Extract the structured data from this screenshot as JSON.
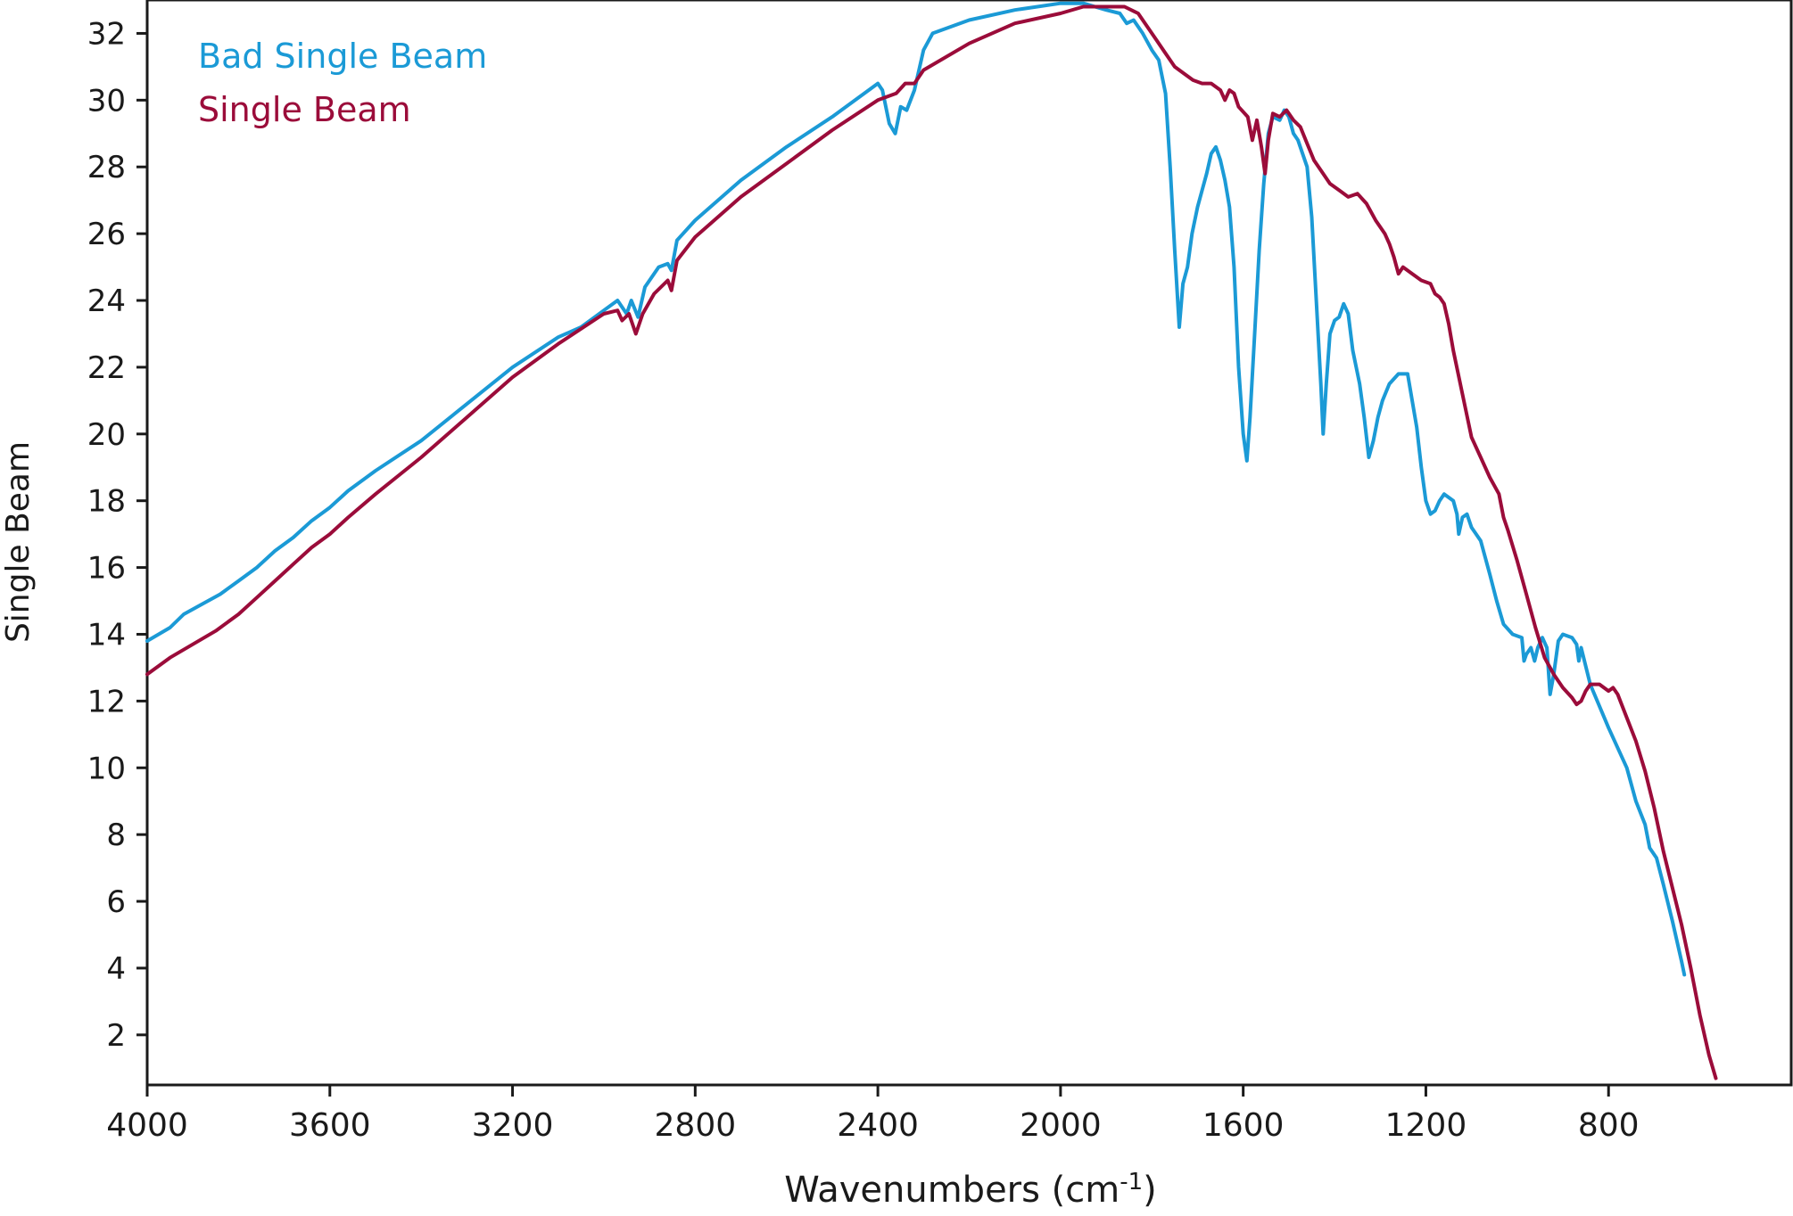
{
  "chart_data": {
    "type": "line",
    "title": "",
    "xlabel_main": "Wavenumbers (cm",
    "xlabel_sup": "-1",
    "xlabel_close": ")",
    "ylabel": "Single Beam",
    "xlim": [
      4000,
      400
    ],
    "ylim": [
      0.5,
      33
    ],
    "x_reversed": true,
    "grid": false,
    "legend_position": "top-left",
    "x_ticks": [
      4000,
      3600,
      3200,
      2800,
      2400,
      2000,
      1600,
      1200,
      800
    ],
    "x_tick_labels": [
      "4000",
      "3600",
      "3200",
      "2800",
      "2400",
      "2000",
      "1600",
      "1200",
      "800"
    ],
    "y_ticks": [
      2,
      4,
      6,
      8,
      10,
      12,
      14,
      16,
      18,
      20,
      22,
      24,
      26,
      28,
      30,
      32
    ],
    "y_tick_labels": [
      "2",
      "4",
      "6",
      "8",
      "10",
      "12",
      "14",
      "16",
      "18",
      "20",
      "22",
      "24",
      "26",
      "28",
      "30",
      "32"
    ],
    "series": [
      {
        "name": "Bad Single Beam",
        "color": "#1b9ad6",
        "points": [
          [
            4000,
            13.8
          ],
          [
            3950,
            14.2
          ],
          [
            3920,
            14.6
          ],
          [
            3880,
            14.9
          ],
          [
            3840,
            15.2
          ],
          [
            3800,
            15.6
          ],
          [
            3760,
            16.0
          ],
          [
            3720,
            16.5
          ],
          [
            3680,
            16.9
          ],
          [
            3640,
            17.4
          ],
          [
            3600,
            17.8
          ],
          [
            3560,
            18.3
          ],
          [
            3500,
            18.9
          ],
          [
            3400,
            19.8
          ],
          [
            3300,
            20.9
          ],
          [
            3200,
            22.0
          ],
          [
            3100,
            22.9
          ],
          [
            3050,
            23.2
          ],
          [
            3000,
            23.7
          ],
          [
            2970,
            24.0
          ],
          [
            2950,
            23.6
          ],
          [
            2940,
            24.0
          ],
          [
            2925,
            23.5
          ],
          [
            2910,
            24.4
          ],
          [
            2880,
            25.0
          ],
          [
            2860,
            25.1
          ],
          [
            2852,
            24.9
          ],
          [
            2840,
            25.8
          ],
          [
            2800,
            26.4
          ],
          [
            2700,
            27.6
          ],
          [
            2600,
            28.6
          ],
          [
            2500,
            29.5
          ],
          [
            2400,
            30.5
          ],
          [
            2390,
            30.3
          ],
          [
            2375,
            29.3
          ],
          [
            2362,
            29.0
          ],
          [
            2350,
            29.8
          ],
          [
            2337,
            29.7
          ],
          [
            2320,
            30.3
          ],
          [
            2300,
            31.5
          ],
          [
            2280,
            32.0
          ],
          [
            2200,
            32.4
          ],
          [
            2100,
            32.7
          ],
          [
            2000,
            32.9
          ],
          [
            1950,
            32.9
          ],
          [
            1900,
            32.7
          ],
          [
            1870,
            32.6
          ],
          [
            1855,
            32.3
          ],
          [
            1840,
            32.4
          ],
          [
            1820,
            32.0
          ],
          [
            1800,
            31.5
          ],
          [
            1785,
            31.2
          ],
          [
            1770,
            30.2
          ],
          [
            1760,
            28.0
          ],
          [
            1750,
            25.5
          ],
          [
            1740,
            23.2
          ],
          [
            1732,
            24.5
          ],
          [
            1722,
            25.0
          ],
          [
            1712,
            26.0
          ],
          [
            1700,
            26.8
          ],
          [
            1690,
            27.3
          ],
          [
            1680,
            27.8
          ],
          [
            1670,
            28.4
          ],
          [
            1660,
            28.6
          ],
          [
            1650,
            28.2
          ],
          [
            1640,
            27.6
          ],
          [
            1630,
            26.8
          ],
          [
            1620,
            25.0
          ],
          [
            1610,
            22.0
          ],
          [
            1600,
            20.0
          ],
          [
            1592,
            19.2
          ],
          [
            1585,
            20.5
          ],
          [
            1575,
            23.0
          ],
          [
            1565,
            25.5
          ],
          [
            1555,
            27.5
          ],
          [
            1545,
            29.0
          ],
          [
            1535,
            29.5
          ],
          [
            1520,
            29.4
          ],
          [
            1510,
            29.7
          ],
          [
            1500,
            29.5
          ],
          [
            1490,
            29.0
          ],
          [
            1480,
            28.8
          ],
          [
            1470,
            28.4
          ],
          [
            1460,
            28.0
          ],
          [
            1450,
            26.5
          ],
          [
            1440,
            24.0
          ],
          [
            1430,
            21.5
          ],
          [
            1425,
            20.0
          ],
          [
            1418,
            21.5
          ],
          [
            1410,
            23.0
          ],
          [
            1400,
            23.4
          ],
          [
            1390,
            23.5
          ],
          [
            1380,
            23.9
          ],
          [
            1370,
            23.6
          ],
          [
            1360,
            22.5
          ],
          [
            1345,
            21.5
          ],
          [
            1335,
            20.5
          ],
          [
            1325,
            19.3
          ],
          [
            1315,
            19.8
          ],
          [
            1305,
            20.5
          ],
          [
            1295,
            21.0
          ],
          [
            1280,
            21.5
          ],
          [
            1260,
            21.8
          ],
          [
            1240,
            21.8
          ],
          [
            1230,
            21.0
          ],
          [
            1220,
            20.2
          ],
          [
            1210,
            19.0
          ],
          [
            1200,
            18.0
          ],
          [
            1190,
            17.6
          ],
          [
            1180,
            17.7
          ],
          [
            1170,
            18.0
          ],
          [
            1160,
            18.2
          ],
          [
            1140,
            18.0
          ],
          [
            1132,
            17.6
          ],
          [
            1128,
            17.0
          ],
          [
            1120,
            17.5
          ],
          [
            1110,
            17.6
          ],
          [
            1100,
            17.2
          ],
          [
            1080,
            16.8
          ],
          [
            1060,
            15.8
          ],
          [
            1045,
            15.0
          ],
          [
            1030,
            14.3
          ],
          [
            1010,
            14.0
          ],
          [
            990,
            13.9
          ],
          [
            985,
            13.2
          ],
          [
            980,
            13.4
          ],
          [
            970,
            13.6
          ],
          [
            962,
            13.2
          ],
          [
            955,
            13.6
          ],
          [
            945,
            13.9
          ],
          [
            935,
            13.6
          ],
          [
            928,
            12.2
          ],
          [
            920,
            12.8
          ],
          [
            910,
            13.8
          ],
          [
            900,
            14.0
          ],
          [
            880,
            13.9
          ],
          [
            870,
            13.7
          ],
          [
            865,
            13.2
          ],
          [
            860,
            13.6
          ],
          [
            840,
            12.5
          ],
          [
            800,
            11.2
          ],
          [
            760,
            10.0
          ],
          [
            740,
            9.0
          ],
          [
            720,
            8.3
          ],
          [
            710,
            7.6
          ],
          [
            695,
            7.3
          ],
          [
            680,
            6.5
          ],
          [
            660,
            5.4
          ],
          [
            640,
            4.2
          ],
          [
            634,
            3.8
          ]
        ]
      },
      {
        "name": "Single Beam",
        "color": "#9b0c3a",
        "points": [
          [
            4000,
            12.8
          ],
          [
            3950,
            13.3
          ],
          [
            3900,
            13.7
          ],
          [
            3850,
            14.1
          ],
          [
            3800,
            14.6
          ],
          [
            3760,
            15.1
          ],
          [
            3720,
            15.6
          ],
          [
            3680,
            16.1
          ],
          [
            3640,
            16.6
          ],
          [
            3600,
            17.0
          ],
          [
            3560,
            17.5
          ],
          [
            3500,
            18.2
          ],
          [
            3400,
            19.3
          ],
          [
            3300,
            20.5
          ],
          [
            3200,
            21.7
          ],
          [
            3100,
            22.7
          ],
          [
            3000,
            23.6
          ],
          [
            2970,
            23.7
          ],
          [
            2960,
            23.4
          ],
          [
            2945,
            23.6
          ],
          [
            2930,
            23.0
          ],
          [
            2915,
            23.6
          ],
          [
            2890,
            24.2
          ],
          [
            2860,
            24.6
          ],
          [
            2852,
            24.3
          ],
          [
            2840,
            25.2
          ],
          [
            2800,
            25.9
          ],
          [
            2700,
            27.1
          ],
          [
            2600,
            28.1
          ],
          [
            2500,
            29.1
          ],
          [
            2400,
            30.0
          ],
          [
            2360,
            30.2
          ],
          [
            2340,
            30.5
          ],
          [
            2320,
            30.5
          ],
          [
            2300,
            30.9
          ],
          [
            2200,
            31.7
          ],
          [
            2100,
            32.3
          ],
          [
            2000,
            32.6
          ],
          [
            1950,
            32.8
          ],
          [
            1900,
            32.8
          ],
          [
            1860,
            32.8
          ],
          [
            1830,
            32.6
          ],
          [
            1810,
            32.2
          ],
          [
            1790,
            31.8
          ],
          [
            1770,
            31.4
          ],
          [
            1750,
            31.0
          ],
          [
            1730,
            30.8
          ],
          [
            1710,
            30.6
          ],
          [
            1690,
            30.5
          ],
          [
            1670,
            30.5
          ],
          [
            1650,
            30.3
          ],
          [
            1640,
            30.0
          ],
          [
            1630,
            30.3
          ],
          [
            1620,
            30.2
          ],
          [
            1610,
            29.8
          ],
          [
            1590,
            29.5
          ],
          [
            1580,
            28.8
          ],
          [
            1570,
            29.4
          ],
          [
            1560,
            28.6
          ],
          [
            1552,
            27.8
          ],
          [
            1545,
            28.8
          ],
          [
            1535,
            29.6
          ],
          [
            1520,
            29.5
          ],
          [
            1505,
            29.7
          ],
          [
            1490,
            29.4
          ],
          [
            1475,
            29.2
          ],
          [
            1460,
            28.7
          ],
          [
            1445,
            28.2
          ],
          [
            1430,
            27.9
          ],
          [
            1410,
            27.5
          ],
          [
            1390,
            27.3
          ],
          [
            1370,
            27.1
          ],
          [
            1350,
            27.2
          ],
          [
            1330,
            26.9
          ],
          [
            1310,
            26.4
          ],
          [
            1290,
            26.0
          ],
          [
            1280,
            25.7
          ],
          [
            1270,
            25.3
          ],
          [
            1260,
            24.8
          ],
          [
            1250,
            25.0
          ],
          [
            1230,
            24.8
          ],
          [
            1210,
            24.6
          ],
          [
            1190,
            24.5
          ],
          [
            1180,
            24.2
          ],
          [
            1170,
            24.1
          ],
          [
            1160,
            23.9
          ],
          [
            1150,
            23.3
          ],
          [
            1140,
            22.5
          ],
          [
            1120,
            21.2
          ],
          [
            1100,
            19.9
          ],
          [
            1080,
            19.3
          ],
          [
            1060,
            18.7
          ],
          [
            1040,
            18.2
          ],
          [
            1030,
            17.5
          ],
          [
            1020,
            17.1
          ],
          [
            1000,
            16.2
          ],
          [
            980,
            15.2
          ],
          [
            960,
            14.2
          ],
          [
            940,
            13.3
          ],
          [
            920,
            12.8
          ],
          [
            900,
            12.4
          ],
          [
            880,
            12.1
          ],
          [
            870,
            11.9
          ],
          [
            860,
            12.0
          ],
          [
            850,
            12.3
          ],
          [
            840,
            12.5
          ],
          [
            820,
            12.5
          ],
          [
            800,
            12.3
          ],
          [
            790,
            12.4
          ],
          [
            780,
            12.2
          ],
          [
            760,
            11.5
          ],
          [
            740,
            10.8
          ],
          [
            720,
            9.9
          ],
          [
            700,
            8.8
          ],
          [
            680,
            7.5
          ],
          [
            660,
            6.4
          ],
          [
            640,
            5.3
          ],
          [
            620,
            4.0
          ],
          [
            600,
            2.6
          ],
          [
            580,
            1.4
          ],
          [
            565,
            0.7
          ]
        ]
      }
    ]
  }
}
